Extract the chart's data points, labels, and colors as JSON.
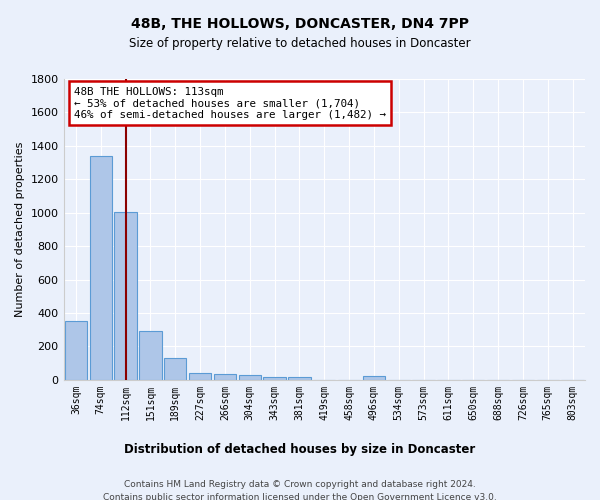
{
  "title": "48B, THE HOLLOWS, DONCASTER, DN4 7PP",
  "subtitle": "Size of property relative to detached houses in Doncaster",
  "xlabel": "Distribution of detached houses by size in Doncaster",
  "ylabel": "Number of detached properties",
  "footer_line1": "Contains HM Land Registry data © Crown copyright and database right 2024.",
  "footer_line2": "Contains public sector information licensed under the Open Government Licence v3.0.",
  "bar_labels": [
    "36sqm",
    "74sqm",
    "112sqm",
    "151sqm",
    "189sqm",
    "227sqm",
    "266sqm",
    "304sqm",
    "343sqm",
    "381sqm",
    "419sqm",
    "458sqm",
    "496sqm",
    "534sqm",
    "573sqm",
    "611sqm",
    "650sqm",
    "688sqm",
    "726sqm",
    "765sqm",
    "803sqm"
  ],
  "bar_values": [
    355,
    1340,
    1005,
    295,
    130,
    40,
    35,
    30,
    20,
    15,
    0,
    0,
    25,
    0,
    0,
    0,
    0,
    0,
    0,
    0,
    0
  ],
  "bar_color": "#aec6e8",
  "bar_edgecolor": "#5b9bd5",
  "highlight_bar_index": 2,
  "highlight_line_color": "#8b0000",
  "ylim": [
    0,
    1800
  ],
  "yticks": [
    0,
    200,
    400,
    600,
    800,
    1000,
    1200,
    1400,
    1600,
    1800
  ],
  "annotation_line1": "48B THE HOLLOWS: 113sqm",
  "annotation_line2": "← 53% of detached houses are smaller (1,704)",
  "annotation_line3": "46% of semi-detached houses are larger (1,482) →",
  "annotation_box_color": "#ffffff",
  "annotation_box_edgecolor": "#cc0000",
  "background_color": "#eaf0fb",
  "plot_bg_color": "#eaf0fb"
}
